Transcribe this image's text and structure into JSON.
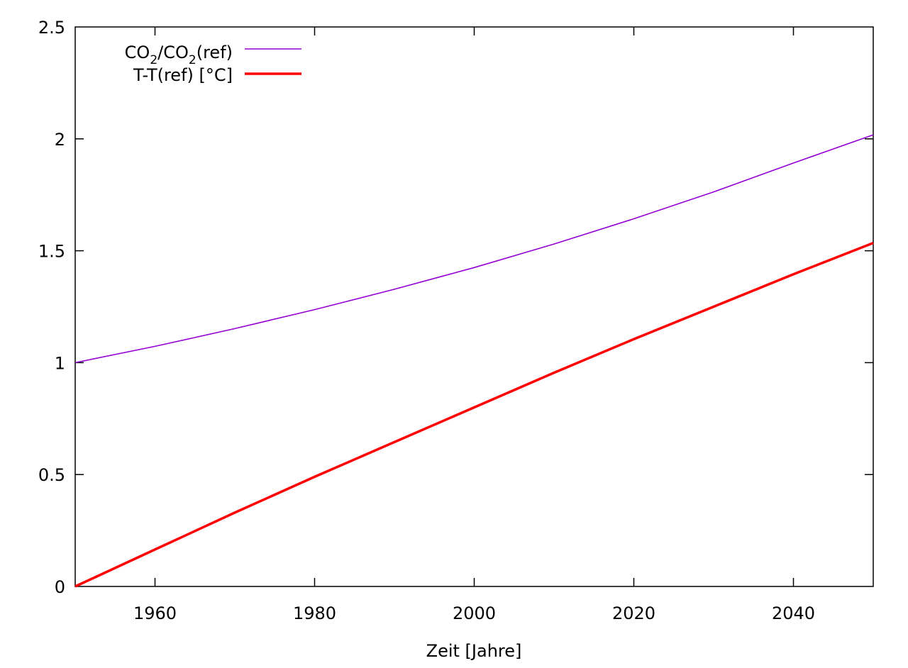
{
  "chart_data": {
    "type": "line",
    "xlabel": "Zeit [Jahre]",
    "ylabel": "",
    "xlim": [
      1950,
      2050
    ],
    "ylim": [
      0,
      2.5
    ],
    "xticks": [
      1960,
      1980,
      2000,
      2020,
      2040
    ],
    "xtick_labels": [
      "1960",
      "1980",
      "2000",
      "2020",
      "2040"
    ],
    "yticks": [
      0,
      0.5,
      1,
      1.5,
      2,
      2.5
    ],
    "ytick_labels": [
      "0",
      "0.5",
      "1",
      "1.5",
      "2",
      "2.5"
    ],
    "grid": false,
    "legend_position": "top-left",
    "series": [
      {
        "name": "CO2/CO2(ref)",
        "legend": {
          "p1": "CO",
          "s1": "2",
          "p2": "/CO",
          "s2": "2",
          "p3": "(ref)"
        },
        "color": "#9400d3",
        "x": [
          1950,
          1960,
          1970,
          1980,
          1990,
          2000,
          2010,
          2020,
          2030,
          2040,
          2050
        ],
        "y": [
          1.0,
          1.073,
          1.152,
          1.237,
          1.328,
          1.425,
          1.53,
          1.643,
          1.763,
          1.892,
          2.018
        ]
      },
      {
        "name": "T-T(ref) [°C]",
        "color": "#ff0000",
        "x": [
          1950,
          1960,
          1970,
          1980,
          1990,
          2000,
          2010,
          2020,
          2030,
          2040,
          2050
        ],
        "y": [
          0,
          0.165,
          0.33,
          0.49,
          0.645,
          0.8,
          0.955,
          1.105,
          1.25,
          1.395,
          1.535
        ]
      }
    ]
  }
}
